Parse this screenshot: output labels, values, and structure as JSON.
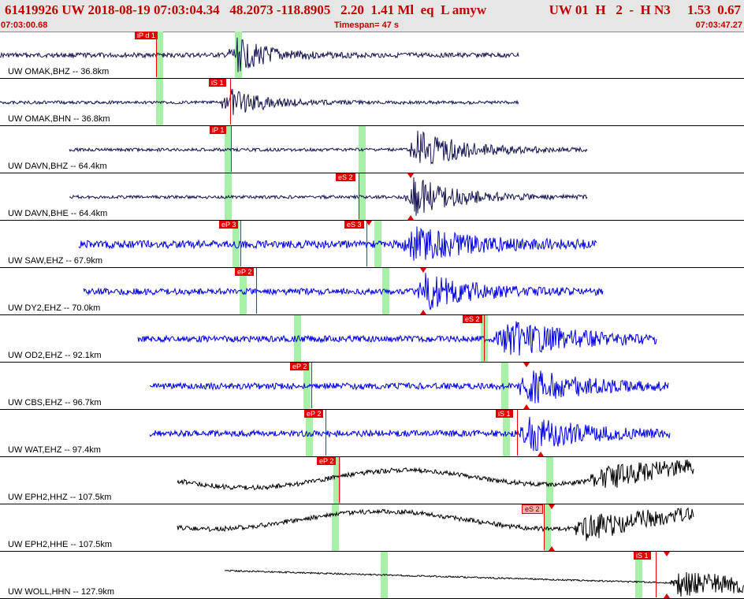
{
  "header": {
    "title": "61419926 UW 2018-08-19 07:03:04.34   48.2073 -118.8905   2.20  1.41 Ml  eq  L amyw",
    "right_info": "UW 01  H   2  -  H N3     1.53  0.67",
    "start_time": "07:03:00.68",
    "timespan": "Timespan=  47 s",
    "end_time": "07:03:47.27"
  },
  "colors": {
    "header_bg": "#e6e6e6",
    "header_text": "#c00000",
    "pick_red": "#e00000",
    "green_marker": "#a8f0a8",
    "trace_navy": "#141450",
    "trace_blue": "#0000e0",
    "trace_black": "#000000"
  },
  "traces": [
    {
      "label": "UW OMAK,BHZ -- 36.8km",
      "color": "navy",
      "picks": [
        {
          "label": "iP d 1"
        }
      ]
    },
    {
      "label": "UW OMAK,BHN -- 36.8km",
      "color": "navy",
      "picks": [
        {
          "label": "iS 1"
        }
      ]
    },
    {
      "label": "UW DAVN,BHZ -- 64.4km",
      "color": "navy",
      "picks": [
        {
          "label": "iP 1"
        }
      ]
    },
    {
      "label": "UW DAVN,BHE -- 64.4km",
      "color": "navy",
      "picks": [
        {
          "label": "eS 2"
        }
      ]
    },
    {
      "label": "UW SAW,EHZ -- 67.9km",
      "color": "blue",
      "picks": [
        {
          "label": "eP 3"
        },
        {
          "label": "eS 3"
        }
      ]
    },
    {
      "label": "UW DY2,EHZ -- 70.0km",
      "color": "blue",
      "picks": [
        {
          "label": "eP 2"
        }
      ]
    },
    {
      "label": "UW OD2,EHZ -- 92.1km",
      "color": "blue",
      "picks": [
        {
          "label": "eS 2"
        }
      ]
    },
    {
      "label": "UW CBS,EHZ -- 96.7km",
      "color": "blue",
      "picks": [
        {
          "label": "eP 2"
        }
      ]
    },
    {
      "label": "UW WAT,EHZ -- 97.4km",
      "color": "blue",
      "picks": [
        {
          "label": "eP 2"
        },
        {
          "label": "iS 1"
        }
      ]
    },
    {
      "label": "UW EPH2,HHZ -- 107.5km",
      "color": "black",
      "picks": [
        {
          "label": "eP 2"
        }
      ]
    },
    {
      "label": "UW EPH2,HHE -- 107.5km",
      "color": "black",
      "picks": [
        {
          "label": "eS 2"
        }
      ]
    },
    {
      "label": "UW WOLL,HHN -- 127.9km",
      "color": "black",
      "picks": [
        {
          "label": "iS 1"
        }
      ]
    }
  ]
}
